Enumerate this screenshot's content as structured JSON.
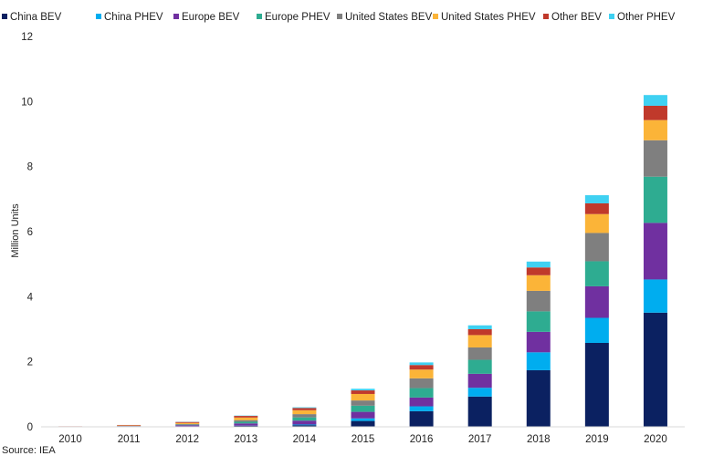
{
  "chart_data": {
    "type": "bar",
    "stacked": true,
    "title": "",
    "xlabel": "",
    "ylabel": "Million Units",
    "ylim": [
      0,
      12
    ],
    "yticks": [
      0,
      2,
      4,
      6,
      8,
      10,
      12
    ],
    "grid": false,
    "legend_position": "top",
    "categories": [
      "2010",
      "2011",
      "2012",
      "2013",
      "2014",
      "2015",
      "2016",
      "2017",
      "2018",
      "2019",
      "2020"
    ],
    "series": [
      {
        "name": "China BEV",
        "color": "#0b2161",
        "values": [
          0.002,
          0.005,
          0.015,
          0.03,
          0.05,
          0.18,
          0.48,
          0.93,
          1.74,
          2.58,
          3.51
        ]
      },
      {
        "name": "China PHEV",
        "color": "#00adef",
        "values": [
          0.0,
          0.0,
          0.0,
          0.005,
          0.02,
          0.08,
          0.15,
          0.27,
          0.55,
          0.77,
          1.02
        ]
      },
      {
        "name": "Europe BEV",
        "color": "#7030a0",
        "values": [
          0.004,
          0.015,
          0.035,
          0.07,
          0.12,
          0.2,
          0.27,
          0.43,
          0.63,
          0.97,
          1.74
        ]
      },
      {
        "name": "Europe PHEV",
        "color": "#2eac91",
        "values": [
          0.0,
          0.002,
          0.015,
          0.05,
          0.1,
          0.19,
          0.29,
          0.43,
          0.63,
          0.77,
          1.42
        ]
      },
      {
        "name": "United States BEV",
        "color": "#7f7f7f",
        "values": [
          0.003,
          0.012,
          0.02,
          0.05,
          0.1,
          0.16,
          0.3,
          0.38,
          0.63,
          0.87,
          1.12
        ]
      },
      {
        "name": "United States PHEV",
        "color": "#fbb438",
        "values": [
          0.0,
          0.008,
          0.035,
          0.08,
          0.12,
          0.2,
          0.27,
          0.38,
          0.48,
          0.58,
          0.62
        ]
      },
      {
        "name": "Other BEV",
        "color": "#c0392b",
        "values": [
          0.008,
          0.015,
          0.03,
          0.05,
          0.07,
          0.11,
          0.14,
          0.18,
          0.24,
          0.33,
          0.44
        ]
      },
      {
        "name": "Other PHEV",
        "color": "#3fd1f2",
        "values": [
          0.0,
          0.0,
          0.005,
          0.01,
          0.02,
          0.05,
          0.08,
          0.12,
          0.18,
          0.25,
          0.33
        ]
      }
    ],
    "source": "Source: IEA"
  }
}
